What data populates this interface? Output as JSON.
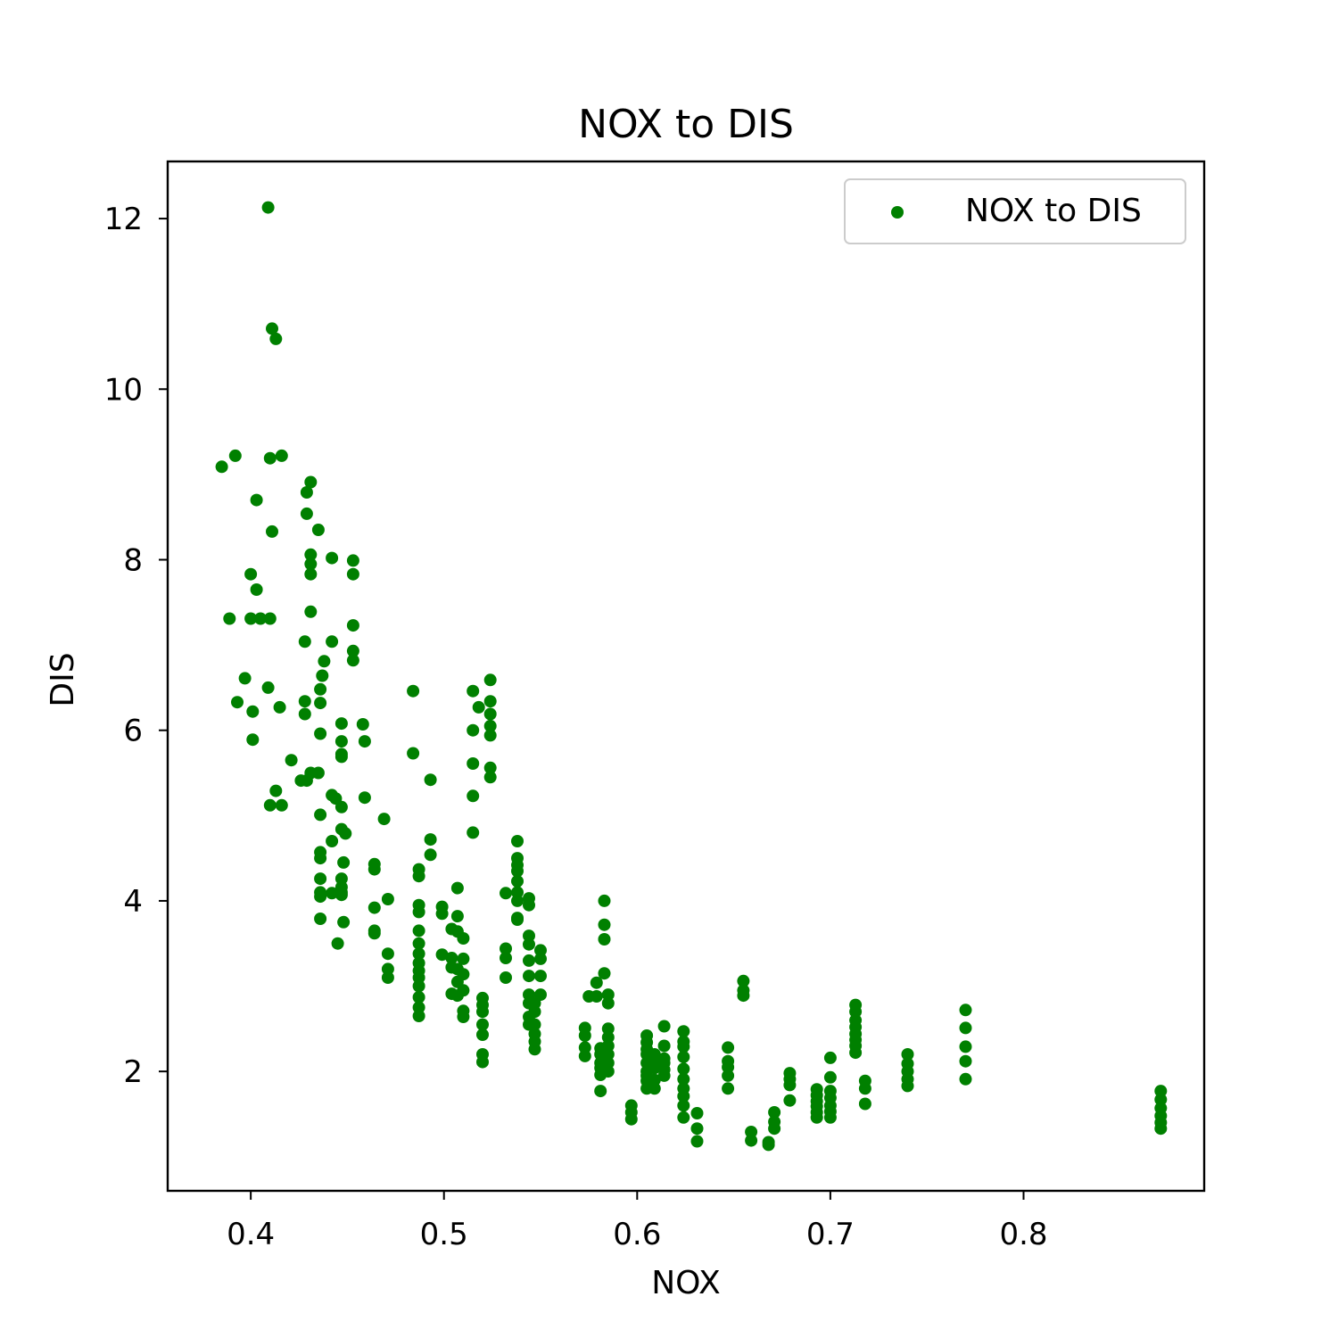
{
  "chart_data": {
    "type": "scatter",
    "title": "NOX to DIS",
    "xlabel": "NOX",
    "ylabel": "DIS",
    "xlim": [
      0.357,
      0.8935
    ],
    "ylim": [
      0.6,
      12.67
    ],
    "x_ticks": [
      0.4,
      0.5,
      0.6,
      0.7,
      0.8
    ],
    "x_tick_labels": [
      "0.4",
      "0.5",
      "0.6",
      "0.7",
      "0.8"
    ],
    "y_ticks": [
      2,
      4,
      6,
      8,
      10,
      12
    ],
    "y_tick_labels": [
      "2",
      "4",
      "6",
      "8",
      "10",
      "12"
    ],
    "grid": false,
    "legend": {
      "position": "top-right",
      "entries": [
        "NOX to DIS"
      ]
    },
    "series": [
      {
        "name": "NOX to DIS",
        "color": "#008000",
        "marker": "circle",
        "points": [
          [
            0.409,
            12.13
          ],
          [
            0.411,
            10.71
          ],
          [
            0.413,
            10.59
          ],
          [
            0.385,
            9.09
          ],
          [
            0.392,
            9.22
          ],
          [
            0.41,
            9.19
          ],
          [
            0.416,
            9.22
          ],
          [
            0.429,
            8.79
          ],
          [
            0.431,
            8.91
          ],
          [
            0.403,
            8.7
          ],
          [
            0.411,
            8.33
          ],
          [
            0.429,
            8.54
          ],
          [
            0.435,
            8.35
          ],
          [
            0.431,
            8.06
          ],
          [
            0.431,
            7.95
          ],
          [
            0.431,
            7.83
          ],
          [
            0.442,
            8.02
          ],
          [
            0.453,
            7.99
          ],
          [
            0.453,
            7.83
          ],
          [
            0.4,
            7.83
          ],
          [
            0.403,
            7.65
          ],
          [
            0.389,
            7.31
          ],
          [
            0.4,
            7.31
          ],
          [
            0.405,
            7.31
          ],
          [
            0.41,
            7.31
          ],
          [
            0.431,
            7.39
          ],
          [
            0.453,
            7.23
          ],
          [
            0.428,
            7.04
          ],
          [
            0.442,
            7.04
          ],
          [
            0.453,
            6.93
          ],
          [
            0.453,
            6.82
          ],
          [
            0.438,
            6.81
          ],
          [
            0.437,
            6.64
          ],
          [
            0.397,
            6.61
          ],
          [
            0.436,
            6.48
          ],
          [
            0.409,
            6.5
          ],
          [
            0.436,
            6.32
          ],
          [
            0.393,
            6.33
          ],
          [
            0.428,
            6.34
          ],
          [
            0.428,
            6.19
          ],
          [
            0.415,
            6.27
          ],
          [
            0.401,
            6.22
          ],
          [
            0.447,
            6.08
          ],
          [
            0.458,
            6.07
          ],
          [
            0.401,
            5.89
          ],
          [
            0.436,
            5.96
          ],
          [
            0.447,
            5.87
          ],
          [
            0.459,
            5.87
          ],
          [
            0.447,
            5.72
          ],
          [
            0.447,
            5.69
          ],
          [
            0.421,
            5.65
          ],
          [
            0.431,
            5.5
          ],
          [
            0.435,
            5.5
          ],
          [
            0.426,
            5.41
          ],
          [
            0.429,
            5.41
          ],
          [
            0.413,
            5.29
          ],
          [
            0.442,
            5.24
          ],
          [
            0.444,
            5.2
          ],
          [
            0.459,
            5.21
          ],
          [
            0.41,
            5.12
          ],
          [
            0.416,
            5.12
          ],
          [
            0.447,
            5.1
          ],
          [
            0.436,
            5.01
          ],
          [
            0.469,
            4.96
          ],
          [
            0.447,
            4.84
          ],
          [
            0.449,
            4.79
          ],
          [
            0.442,
            4.7
          ],
          [
            0.436,
            4.57
          ],
          [
            0.436,
            4.5
          ],
          [
            0.448,
            4.45
          ],
          [
            0.464,
            4.43
          ],
          [
            0.464,
            4.37
          ],
          [
            0.436,
            4.26
          ],
          [
            0.447,
            4.26
          ],
          [
            0.447,
            4.16
          ],
          [
            0.436,
            4.1
          ],
          [
            0.436,
            4.05
          ],
          [
            0.442,
            4.09
          ],
          [
            0.447,
            4.1
          ],
          [
            0.447,
            4.07
          ],
          [
            0.471,
            4.02
          ],
          [
            0.464,
            3.92
          ],
          [
            0.436,
            3.79
          ],
          [
            0.448,
            3.75
          ],
          [
            0.464,
            3.65
          ],
          [
            0.464,
            3.62
          ],
          [
            0.445,
            3.5
          ],
          [
            0.471,
            3.38
          ],
          [
            0.471,
            3.2
          ],
          [
            0.471,
            3.1
          ],
          [
            0.484,
            6.46
          ],
          [
            0.484,
            5.73
          ],
          [
            0.493,
            5.42
          ],
          [
            0.493,
            4.72
          ],
          [
            0.493,
            4.54
          ],
          [
            0.487,
            4.37
          ],
          [
            0.487,
            4.29
          ],
          [
            0.487,
            3.95
          ],
          [
            0.487,
            3.87
          ],
          [
            0.487,
            3.65
          ],
          [
            0.487,
            3.5
          ],
          [
            0.487,
            3.38
          ],
          [
            0.487,
            3.27
          ],
          [
            0.487,
            3.18
          ],
          [
            0.487,
            3.1
          ],
          [
            0.487,
            3.0
          ],
          [
            0.487,
            2.87
          ],
          [
            0.487,
            2.75
          ],
          [
            0.487,
            2.65
          ],
          [
            0.499,
            3.93
          ],
          [
            0.499,
            3.85
          ],
          [
            0.507,
            4.15
          ],
          [
            0.507,
            3.82
          ],
          [
            0.504,
            3.67
          ],
          [
            0.507,
            3.64
          ],
          [
            0.51,
            3.56
          ],
          [
            0.499,
            3.37
          ],
          [
            0.504,
            3.33
          ],
          [
            0.51,
            3.32
          ],
          [
            0.504,
            3.22
          ],
          [
            0.507,
            3.2
          ],
          [
            0.51,
            3.14
          ],
          [
            0.507,
            3.05
          ],
          [
            0.51,
            2.95
          ],
          [
            0.504,
            2.91
          ],
          [
            0.507,
            2.89
          ],
          [
            0.51,
            2.71
          ],
          [
            0.51,
            2.64
          ],
          [
            0.515,
            6.46
          ],
          [
            0.518,
            6.27
          ],
          [
            0.515,
            6.0
          ],
          [
            0.515,
            5.61
          ],
          [
            0.515,
            5.23
          ],
          [
            0.515,
            4.8
          ],
          [
            0.524,
            6.59
          ],
          [
            0.524,
            6.34
          ],
          [
            0.524,
            6.19
          ],
          [
            0.524,
            6.05
          ],
          [
            0.524,
            5.94
          ],
          [
            0.524,
            5.56
          ],
          [
            0.524,
            5.45
          ],
          [
            0.52,
            2.86
          ],
          [
            0.52,
            2.78
          ],
          [
            0.52,
            2.7
          ],
          [
            0.52,
            2.55
          ],
          [
            0.52,
            2.43
          ],
          [
            0.52,
            2.2
          ],
          [
            0.52,
            2.11
          ],
          [
            0.538,
            4.7
          ],
          [
            0.538,
            4.5
          ],
          [
            0.538,
            4.42
          ],
          [
            0.538,
            4.35
          ],
          [
            0.538,
            4.23
          ],
          [
            0.538,
            4.1
          ],
          [
            0.532,
            4.09
          ],
          [
            0.538,
            4.0
          ],
          [
            0.538,
            3.8
          ],
          [
            0.538,
            3.78
          ],
          [
            0.544,
            4.03
          ],
          [
            0.544,
            3.95
          ],
          [
            0.532,
            3.44
          ],
          [
            0.532,
            3.33
          ],
          [
            0.532,
            3.1
          ],
          [
            0.544,
            3.59
          ],
          [
            0.544,
            3.49
          ],
          [
            0.544,
            3.3
          ],
          [
            0.544,
            3.12
          ],
          [
            0.544,
            2.9
          ],
          [
            0.544,
            2.8
          ],
          [
            0.544,
            2.64
          ],
          [
            0.544,
            2.55
          ],
          [
            0.547,
            2.8
          ],
          [
            0.547,
            2.7
          ],
          [
            0.547,
            2.55
          ],
          [
            0.547,
            2.44
          ],
          [
            0.547,
            2.35
          ],
          [
            0.547,
            2.26
          ],
          [
            0.55,
            3.42
          ],
          [
            0.55,
            3.32
          ],
          [
            0.55,
            3.12
          ],
          [
            0.55,
            2.9
          ],
          [
            0.573,
            2.51
          ],
          [
            0.573,
            2.42
          ],
          [
            0.573,
            2.28
          ],
          [
            0.573,
            2.18
          ],
          [
            0.575,
            2.88
          ],
          [
            0.579,
            3.04
          ],
          [
            0.579,
            2.88
          ],
          [
            0.583,
            4.0
          ],
          [
            0.583,
            3.72
          ],
          [
            0.583,
            3.55
          ],
          [
            0.583,
            3.15
          ],
          [
            0.585,
            2.9
          ],
          [
            0.585,
            2.8
          ],
          [
            0.581,
            2.27
          ],
          [
            0.581,
            2.2
          ],
          [
            0.581,
            2.1
          ],
          [
            0.581,
            2.04
          ],
          [
            0.581,
            1.96
          ],
          [
            0.581,
            1.77
          ],
          [
            0.585,
            2.5
          ],
          [
            0.585,
            2.4
          ],
          [
            0.585,
            2.3
          ],
          [
            0.585,
            2.2
          ],
          [
            0.585,
            2.1
          ],
          [
            0.585,
            2.0
          ],
          [
            0.597,
            1.6
          ],
          [
            0.597,
            1.52
          ],
          [
            0.597,
            1.44
          ],
          [
            0.605,
            2.42
          ],
          [
            0.605,
            2.34
          ],
          [
            0.605,
            2.26
          ],
          [
            0.605,
            2.2
          ],
          [
            0.605,
            2.1
          ],
          [
            0.605,
            2.0
          ],
          [
            0.605,
            1.95
          ],
          [
            0.605,
            1.89
          ],
          [
            0.605,
            1.8
          ],
          [
            0.609,
            2.2
          ],
          [
            0.609,
            2.12
          ],
          [
            0.609,
            2.04
          ],
          [
            0.609,
            1.9
          ],
          [
            0.609,
            1.8
          ],
          [
            0.614,
            2.53
          ],
          [
            0.614,
            2.3
          ],
          [
            0.614,
            2.15
          ],
          [
            0.614,
            2.1
          ],
          [
            0.614,
            2.02
          ],
          [
            0.614,
            1.95
          ],
          [
            0.624,
            2.47
          ],
          [
            0.624,
            2.35
          ],
          [
            0.624,
            2.29
          ],
          [
            0.624,
            2.17
          ],
          [
            0.624,
            2.03
          ],
          [
            0.624,
            1.91
          ],
          [
            0.624,
            1.8
          ],
          [
            0.624,
            1.71
          ],
          [
            0.624,
            1.6
          ],
          [
            0.624,
            1.46
          ],
          [
            0.631,
            1.51
          ],
          [
            0.631,
            1.33
          ],
          [
            0.631,
            1.18
          ],
          [
            0.647,
            2.28
          ],
          [
            0.647,
            2.12
          ],
          [
            0.647,
            2.05
          ],
          [
            0.647,
            1.95
          ],
          [
            0.647,
            1.8
          ],
          [
            0.655,
            3.06
          ],
          [
            0.655,
            2.95
          ],
          [
            0.655,
            2.89
          ],
          [
            0.659,
            1.29
          ],
          [
            0.659,
            1.19
          ],
          [
            0.668,
            1.17
          ],
          [
            0.668,
            1.14
          ],
          [
            0.671,
            1.52
          ],
          [
            0.671,
            1.41
          ],
          [
            0.671,
            1.33
          ],
          [
            0.679,
            1.98
          ],
          [
            0.679,
            1.91
          ],
          [
            0.679,
            1.84
          ],
          [
            0.679,
            1.66
          ],
          [
            0.693,
            1.79
          ],
          [
            0.693,
            1.72
          ],
          [
            0.693,
            1.65
          ],
          [
            0.693,
            1.59
          ],
          [
            0.693,
            1.52
          ],
          [
            0.693,
            1.46
          ],
          [
            0.7,
            2.16
          ],
          [
            0.7,
            1.93
          ],
          [
            0.7,
            1.77
          ],
          [
            0.7,
            1.69
          ],
          [
            0.7,
            1.6
          ],
          [
            0.7,
            1.53
          ],
          [
            0.7,
            1.46
          ],
          [
            0.713,
            2.78
          ],
          [
            0.713,
            2.7
          ],
          [
            0.713,
            2.6
          ],
          [
            0.713,
            2.52
          ],
          [
            0.713,
            2.44
          ],
          [
            0.713,
            2.37
          ],
          [
            0.713,
            2.3
          ],
          [
            0.713,
            2.22
          ],
          [
            0.718,
            1.89
          ],
          [
            0.718,
            1.8
          ],
          [
            0.718,
            1.62
          ],
          [
            0.74,
            2.2
          ],
          [
            0.74,
            2.09
          ],
          [
            0.74,
            2.0
          ],
          [
            0.74,
            1.91
          ],
          [
            0.74,
            1.83
          ],
          [
            0.77,
            2.72
          ],
          [
            0.77,
            2.51
          ],
          [
            0.77,
            2.29
          ],
          [
            0.77,
            2.12
          ],
          [
            0.77,
            1.91
          ],
          [
            0.871,
            1.77
          ],
          [
            0.871,
            1.67
          ],
          [
            0.871,
            1.57
          ],
          [
            0.871,
            1.48
          ],
          [
            0.871,
            1.4
          ],
          [
            0.871,
            1.33
          ]
        ]
      }
    ]
  }
}
